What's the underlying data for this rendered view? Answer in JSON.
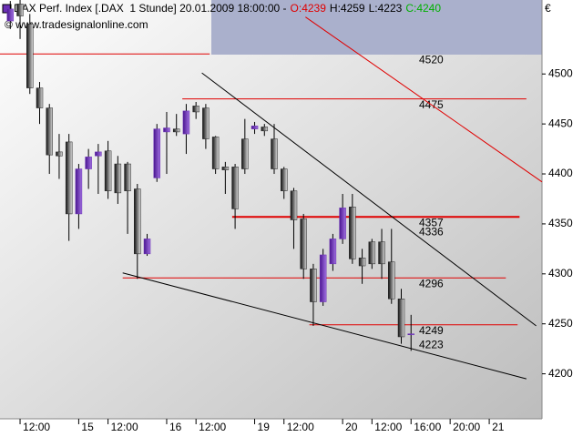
{
  "chart_data": {
    "type": "candlestick",
    "title": "DAX Perf. Index [.DAX  1 Stunde] 20.01.2009 18:00:00 -",
    "ohlc_labels": [
      {
        "text": "O:4239",
        "color": "#e00000"
      },
      {
        "text": "H:4259",
        "color": "#000000"
      },
      {
        "text": "L:4223",
        "color": "#000000"
      },
      {
        "text": "C:4240",
        "color": "#00b000"
      }
    ],
    "credit": "© www.tradesignalonline.com",
    "currency": "€",
    "categories": [
      null,
      "12:00",
      null,
      null,
      null,
      null,
      null,
      "15",
      null,
      null,
      "12:00",
      null,
      null,
      null,
      null,
      null,
      "16",
      null,
      null,
      "12:00",
      null,
      null,
      null,
      null,
      null,
      "19",
      null,
      null,
      "12:00",
      null,
      null,
      null,
      null,
      null,
      "20",
      null,
      null,
      "12:00",
      null,
      null,
      null,
      "16:00",
      null,
      null,
      null,
      "20:00",
      null,
      null,
      null,
      "21",
      null,
      null,
      null,
      null
    ],
    "open": [
      4553,
      4570,
      4550,
      4486,
      4466,
      4422,
      4432,
      4360,
      4405,
      4418,
      4423,
      4410,
      4410,
      4385,
      4320,
      4396,
      4442,
      4445,
      4440,
      4468,
      4466,
      4437,
      4407,
      4407,
      4435,
      4445,
      4447,
      4435,
      4405,
      4383,
      4355,
      4305,
      4272,
      4310,
      4335,
      4367,
      4316,
      4332,
      4332,
      4312,
      4275,
      4239,
      null,
      null,
      null,
      null,
      null,
      null,
      null,
      null,
      null,
      null,
      null,
      null
    ],
    "high": [
      4573,
      4574,
      4560,
      4492,
      4470,
      4440,
      4440,
      4410,
      4425,
      4430,
      4433,
      4418,
      4412,
      4390,
      4340,
      4450,
      4462,
      4460,
      4470,
      4472,
      4470,
      4438,
      4412,
      4410,
      4455,
      4452,
      4450,
      4450,
      4407,
      4386,
      4360,
      4310,
      4325,
      4340,
      4380,
      4380,
      4325,
      4335,
      4345,
      4345,
      4285,
      4259,
      null,
      null,
      null,
      null,
      null,
      null,
      null,
      null,
      null,
      null,
      null,
      null
    ],
    "low": [
      4545,
      4535,
      4480,
      4450,
      4400,
      4395,
      4333,
      4345,
      4385,
      4380,
      4375,
      4370,
      4340,
      4295,
      4318,
      4392,
      4400,
      4438,
      4420,
      4455,
      4425,
      4400,
      4380,
      4345,
      4400,
      4440,
      4438,
      4400,
      4375,
      4325,
      4295,
      4248,
      4268,
      4303,
      4330,
      4310,
      4290,
      4305,
      4295,
      4270,
      4230,
      4223,
      null,
      null,
      null,
      null,
      null,
      null,
      null,
      null,
      null,
      null,
      null,
      null
    ],
    "close": [
      4565,
      4558,
      4486,
      4466,
      4419,
      4418,
      4360,
      4405,
      4417,
      4422,
      4383,
      4381,
      4383,
      4320,
      4335,
      4445,
      4446,
      4442,
      4463,
      4462,
      4435,
      4405,
      4404,
      4365,
      4405,
      4448,
      4443,
      4405,
      4383,
      4354,
      4305,
      4272,
      4319,
      4335,
      4366,
      4315,
      4308,
      4310,
      4310,
      4275,
      4237,
      4240,
      null,
      null,
      null,
      null,
      null,
      null,
      null,
      null,
      null,
      null,
      null,
      null
    ],
    "up_color": "#6a2fb5",
    "down_color": "#222222",
    "ylim": [
      4155,
      4574
    ],
    "yticks": [
      4200,
      4250,
      4300,
      4350,
      4400,
      4450,
      4500
    ],
    "levels": [
      {
        "value": 4520,
        "from": -1.1,
        "to": 20.4,
        "color": "#e00000"
      },
      {
        "value": 4475,
        "from": 17.6,
        "to": 52.8,
        "color": "#e00000"
      },
      {
        "value": 4357,
        "from": 22.7,
        "to": 52.1,
        "color": "#e00000"
      },
      {
        "value": 4296,
        "from": 11.5,
        "to": 50.7,
        "color": "#e00000"
      },
      {
        "value": 4249,
        "from": 30.6,
        "to": 51.9,
        "color": "#e00000"
      }
    ],
    "trendlines": [
      {
        "x": [
          19.6,
          53.8
        ],
        "values": [
          4501,
          4248
        ],
        "color": "#000000"
      },
      {
        "x": [
          11.5,
          52.8
        ],
        "values": [
          4301,
          4195
        ],
        "color": "#000000"
      },
      {
        "x": [
          30.2,
          54.4
        ],
        "values": [
          4557,
          4392
        ],
        "color": "#e00000"
      }
    ],
    "annotations": [
      4336,
      4223
    ]
  }
}
